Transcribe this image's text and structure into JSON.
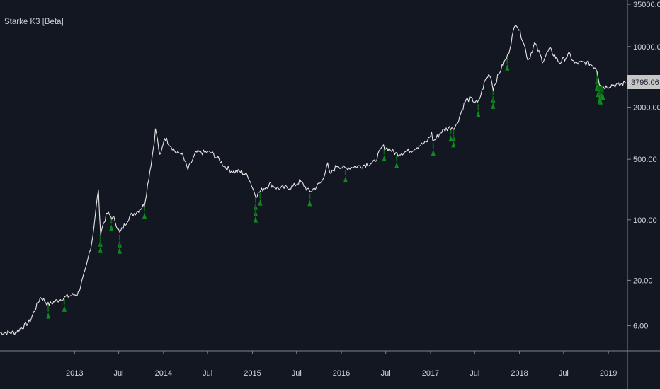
{
  "indicator": {
    "title": "Starke K3 [Beta]"
  },
  "price_label": {
    "value": "3795.06"
  },
  "colors": {
    "background": "#131722",
    "price_line": "#e6e6e6",
    "signal": "#0f8a1e",
    "signal_dark": "#0a6516",
    "axis_line": "#7f838c",
    "tag_bg": "#c7c7c7",
    "tag_text": "#1f2330"
  },
  "chart_data": {
    "type": "line",
    "scale": "log",
    "ylim": [
      4,
      32000
    ],
    "xlim": [
      "2012-03-01",
      "2019-03-20"
    ],
    "y_tick_labels": [
      "35000.00",
      "10000.00",
      "2000.00",
      "500.00",
      "100.00",
      "20.00",
      "6.00"
    ],
    "y_tick_values": [
      35000,
      10000,
      2000,
      500,
      100,
      20,
      6
    ],
    "x_tick_labels": [
      "2013",
      "Jul",
      "2014",
      "Jul",
      "2015",
      "Jul",
      "2016",
      "Jul",
      "2017",
      "Jul",
      "2018",
      "Jul",
      "2019"
    ],
    "x_tick_dates": [
      "2013-01-01",
      "2013-07-01",
      "2014-01-01",
      "2014-07-01",
      "2015-01-01",
      "2015-07-01",
      "2016-01-01",
      "2016-07-01",
      "2017-01-01",
      "2017-07-01",
      "2018-01-01",
      "2018-07-01",
      "2019-01-01"
    ],
    "series": [
      {
        "x": [
          "2012-03-01",
          "2012-05-01",
          "2012-07-01",
          "2012-08-15",
          "2012-09-15",
          "2012-10-15",
          "2012-12-01",
          "2013-01-15",
          "2013-02-15",
          "2013-03-15",
          "2013-04-09",
          "2013-04-16",
          "2013-05-15",
          "2013-06-15",
          "2013-07-05",
          "2013-08-15",
          "2013-09-15",
          "2013-10-15",
          "2013-11-18",
          "2013-11-30",
          "2013-12-18",
          "2014-01-05",
          "2014-02-25",
          "2014-03-15",
          "2014-04-11",
          "2014-05-15",
          "2014-06-15",
          "2014-07-15",
          "2014-08-15",
          "2014-09-15",
          "2014-10-15",
          "2014-11-15",
          "2014-12-15",
          "2015-01-14",
          "2015-02-15",
          "2015-03-15",
          "2015-04-15",
          "2015-05-15",
          "2015-06-15",
          "2015-07-15",
          "2015-08-24",
          "2015-09-15",
          "2015-10-15",
          "2015-11-04",
          "2015-11-15",
          "2015-12-15",
          "2016-01-15",
          "2016-02-15",
          "2016-03-15",
          "2016-04-15",
          "2016-05-15",
          "2016-06-18",
          "2016-07-15",
          "2016-08-15",
          "2016-09-15",
          "2016-10-15",
          "2016-11-15",
          "2016-12-15",
          "2017-01-05",
          "2017-01-12",
          "2017-02-15",
          "2017-03-15",
          "2017-04-15",
          "2017-05-25",
          "2017-06-15",
          "2017-07-15",
          "2017-08-15",
          "2017-09-02",
          "2017-09-15",
          "2017-10-15",
          "2017-11-15",
          "2017-12-17",
          "2018-01-15",
          "2018-02-06",
          "2018-03-05",
          "2018-04-06",
          "2018-05-05",
          "2018-06-15",
          "2018-07-25",
          "2018-08-15",
          "2018-09-15",
          "2018-10-15",
          "2018-11-14",
          "2018-11-25",
          "2018-12-15",
          "2019-01-15",
          "2019-02-15",
          "2019-03-15"
        ],
        "y": [
          5,
          5,
          6.7,
          13,
          10.5,
          11.5,
          13,
          14,
          26,
          60,
          230,
          70,
          120,
          100,
          70,
          110,
          125,
          150,
          600,
          1150,
          520,
          900,
          580,
          600,
          380,
          600,
          600,
          600,
          500,
          400,
          360,
          360,
          320,
          190,
          230,
          260,
          230,
          235,
          240,
          280,
          210,
          235,
          280,
          450,
          330,
          430,
          390,
          410,
          415,
          440,
          460,
          700,
          660,
          575,
          605,
          640,
          720,
          780,
          1000,
          800,
          1050,
          1150,
          1200,
          2400,
          2500,
          2200,
          4200,
          4900,
          3300,
          5400,
          8000,
          19500,
          12000,
          6900,
          11000,
          6800,
          9400,
          6500,
          8200,
          6400,
          6500,
          6400,
          5600,
          3800,
          3400,
          3600,
          3600,
          3900
        ]
      }
    ],
    "signals": [
      "2012-09-15",
      "2012-11-20",
      "2013-04-17",
      "2013-04-17",
      "2013-06-01",
      "2013-07-05",
      "2013-07-05",
      "2013-10-15",
      "2015-01-14",
      "2015-01-14",
      "2015-01-14",
      "2015-02-02",
      "2015-08-24",
      "2016-01-18",
      "2016-06-25",
      "2016-08-15",
      "2017-01-12",
      "2017-03-25",
      "2017-04-05",
      "2017-04-05",
      "2017-07-16",
      "2017-09-15",
      "2017-09-15",
      "2017-11-12",
      "2018-11-15",
      "2018-11-15",
      "2018-11-20",
      "2018-11-20",
      "2018-11-25",
      "2018-11-25",
      "2018-11-30",
      "2018-11-30",
      "2018-12-05",
      "2018-12-10"
    ],
    "grid": false,
    "current_price": 3795.06
  }
}
